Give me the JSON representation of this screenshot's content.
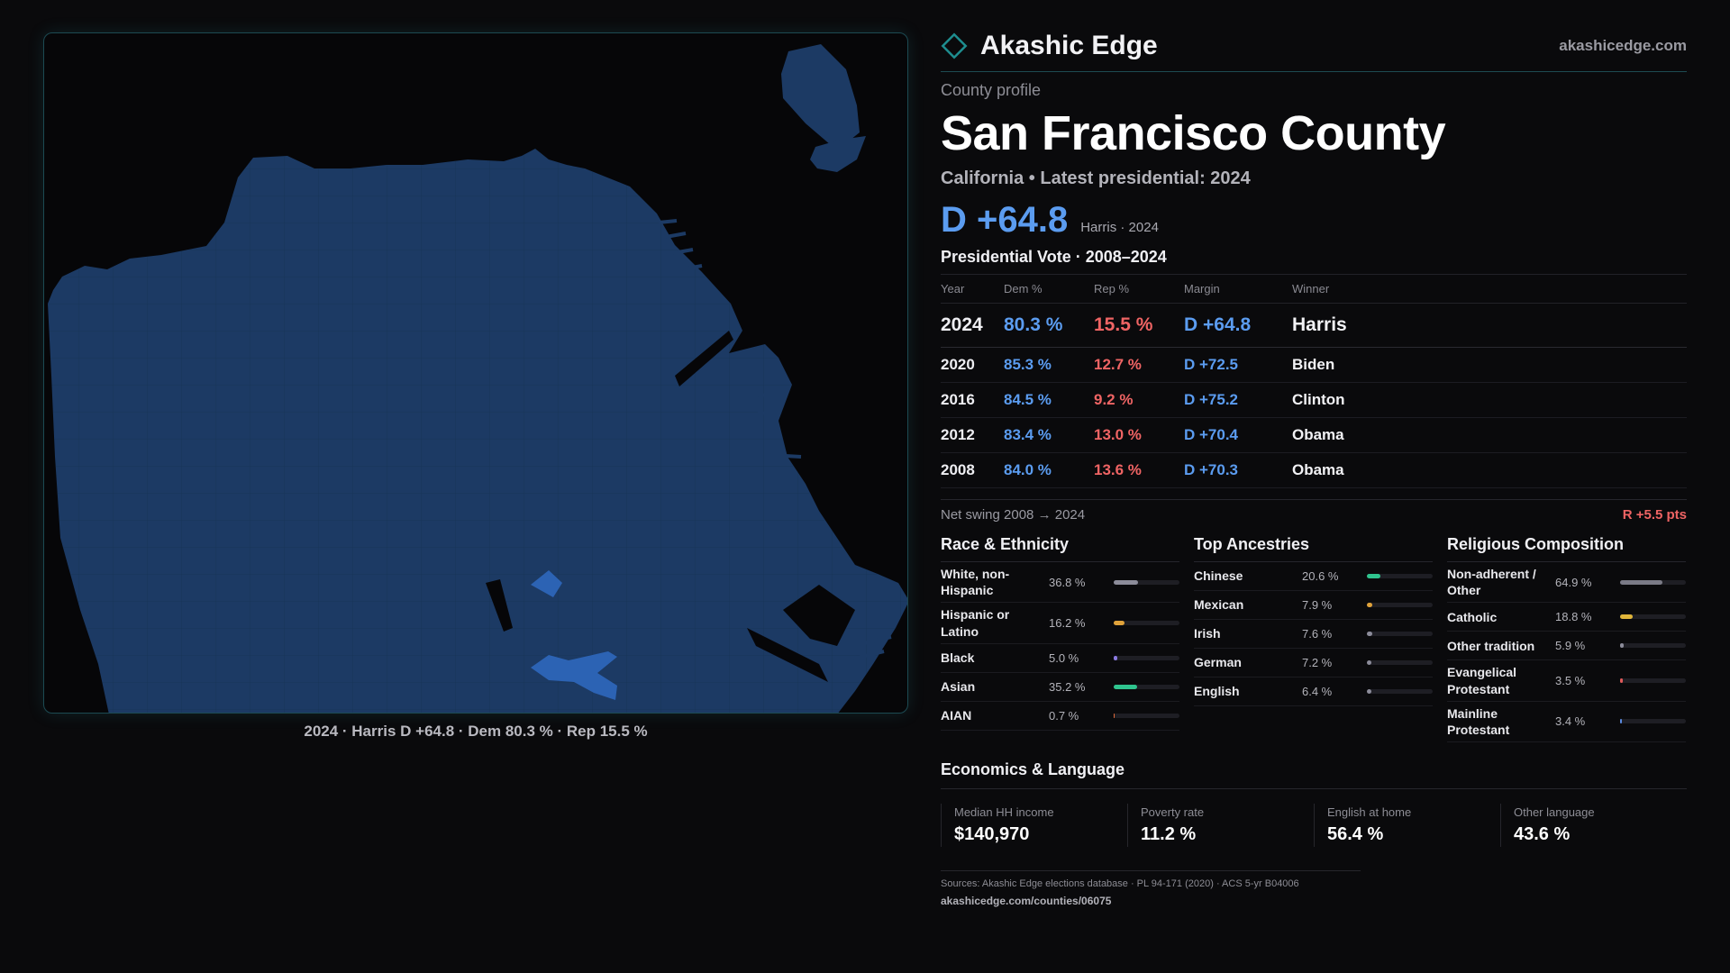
{
  "brand": {
    "name": "Akashic Edge",
    "url": "akashicedge.com",
    "accent": "#1e8d8f",
    "icon": "diamond-logo-icon"
  },
  "map": {
    "caption": "2024 · Harris D +64.8 · Dem 80.3 % · Rep 15.5 %",
    "fill_color": "#1c3a64",
    "highlight_color": "#2c63b4"
  },
  "profile": {
    "eyebrow": "County profile",
    "title": "San Francisco County",
    "subtitle": "California • Latest presidential: 2024",
    "headline_margin": "D +64.8",
    "headline_note": "Harris · 2024"
  },
  "presidential": {
    "title": "Presidential Vote · 2008–2024",
    "headers": [
      "Year",
      "Dem %",
      "Rep %",
      "Margin",
      "Winner"
    ],
    "rows": [
      {
        "year": "2024",
        "dem": "80.3 %",
        "rep": "15.5 %",
        "margin": "D +64.8",
        "winner": "Harris"
      },
      {
        "year": "2020",
        "dem": "85.3 %",
        "rep": "12.7 %",
        "margin": "D +72.5",
        "winner": "Biden"
      },
      {
        "year": "2016",
        "dem": "84.5 %",
        "rep": "9.2 %",
        "margin": "D +75.2",
        "winner": "Clinton"
      },
      {
        "year": "2012",
        "dem": "83.4 %",
        "rep": "13.0 %",
        "margin": "D +70.4",
        "winner": "Obama"
      },
      {
        "year": "2008",
        "dem": "84.0 %",
        "rep": "13.6 %",
        "margin": "D +70.3",
        "winner": "Obama"
      }
    ],
    "swing_label": "Net swing 2008 → 2024",
    "swing_value": "R +5.5 pts"
  },
  "race": {
    "title": "Race & Ethnicity",
    "color": "#8a8aa0",
    "items": [
      {
        "label": "White, non-Hispanic",
        "value": "36.8 %",
        "pct": 36.8,
        "color": "#8c8c9a"
      },
      {
        "label": "Hispanic or Latino",
        "value": "16.2 %",
        "pct": 16.2,
        "color": "#e0a23a"
      },
      {
        "label": "Black",
        "value": "5.0 %",
        "pct": 5.0,
        "color": "#8a7ae0"
      },
      {
        "label": "Asian",
        "value": "35.2 %",
        "pct": 35.2,
        "color": "#2fc48e"
      },
      {
        "label": "AIAN",
        "value": "0.7 %",
        "pct": 0.7,
        "color": "#e06a3a"
      }
    ]
  },
  "ancestry": {
    "title": "Top Ancestries",
    "items": [
      {
        "label": "Chinese",
        "value": "20.6 %",
        "pct": 20.6,
        "color": "#2fc48e"
      },
      {
        "label": "Mexican",
        "value": "7.9 %",
        "pct": 7.9,
        "color": "#e0a23a"
      },
      {
        "label": "Irish",
        "value": "7.6 %",
        "pct": 7.6,
        "color": "#8c8c9a"
      },
      {
        "label": "German",
        "value": "7.2 %",
        "pct": 7.2,
        "color": "#8c8c9a"
      },
      {
        "label": "English",
        "value": "6.4 %",
        "pct": 6.4,
        "color": "#8c8c9a"
      }
    ]
  },
  "religion": {
    "title": "Religious Composition",
    "items": [
      {
        "label": "Non-adherent / Other",
        "value": "64.9 %",
        "pct": 64.9,
        "color": "#7a7a86"
      },
      {
        "label": "Catholic",
        "value": "18.8 %",
        "pct": 18.8,
        "color": "#e0b53a"
      },
      {
        "label": "Other tradition",
        "value": "5.9 %",
        "pct": 5.9,
        "color": "#8c8c9a"
      },
      {
        "label": "Evangelical Protestant",
        "value": "3.5 %",
        "pct": 3.5,
        "color": "#e05a5a"
      },
      {
        "label": "Mainline Protestant",
        "value": "3.4 %",
        "pct": 3.4,
        "color": "#5a8ae0"
      }
    ]
  },
  "economics": {
    "title": "Economics & Language",
    "items": [
      {
        "label": "Median HH income",
        "value": "$140,970"
      },
      {
        "label": "Poverty rate",
        "value": "11.2 %"
      },
      {
        "label": "English at home",
        "value": "56.4 %"
      },
      {
        "label": "Other language",
        "value": "43.6 %"
      }
    ]
  },
  "footer": {
    "sources": "Sources: Akashic Edge elections database · PL 94-171 (2020) · ACS 5-yr B04006",
    "link": "akashicedge.com/counties/06075"
  }
}
